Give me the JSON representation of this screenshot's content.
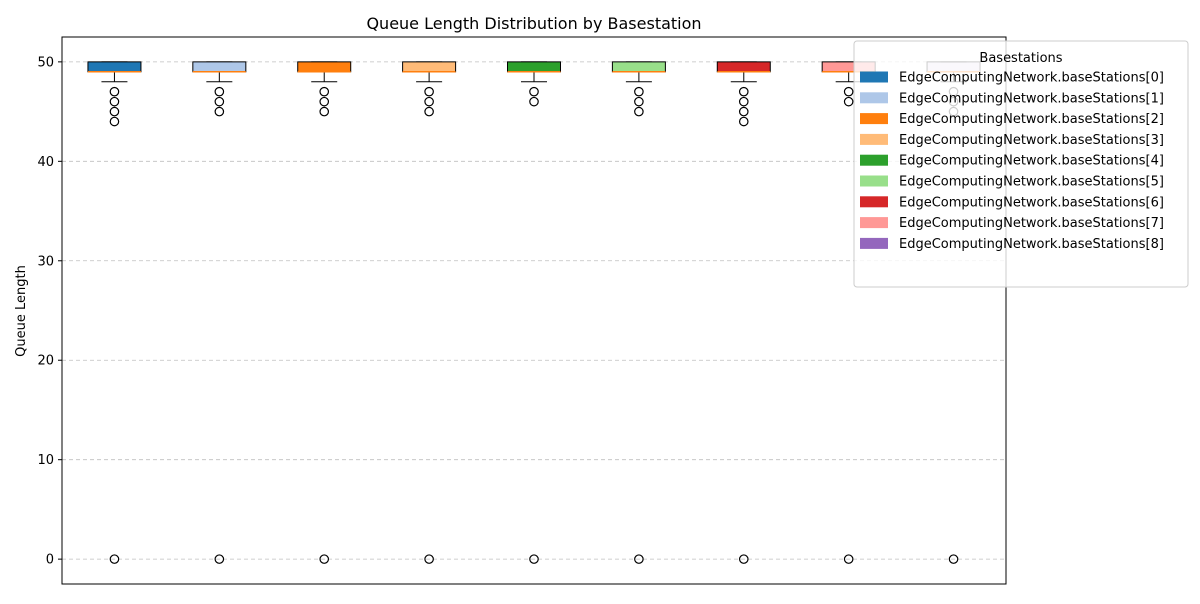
{
  "chart_data": {
    "type": "box",
    "title": "Queue Length Distribution by Basestation",
    "xlabel": "",
    "ylabel": "Queue Length",
    "ylim": [
      -2.5,
      52.5
    ],
    "yticks": [
      0,
      10,
      20,
      30,
      40,
      50
    ],
    "grid": "y",
    "legend": {
      "title": "Basestations",
      "placement": "upper-right-outside"
    },
    "series": [
      {
        "name": "EdgeComputingNetwork.baseStations[0]",
        "color": "#1f77b4",
        "whisker_low": 48,
        "q1": 49,
        "median": 49,
        "q3": 50,
        "whisker_high": 50,
        "outliers": [
          47,
          46,
          45,
          44,
          0
        ]
      },
      {
        "name": "EdgeComputingNetwork.baseStations[1]",
        "color": "#aec7e8",
        "whisker_low": 48,
        "q1": 49,
        "median": 49,
        "q3": 50,
        "whisker_high": 50,
        "outliers": [
          47,
          46,
          45,
          0
        ]
      },
      {
        "name": "EdgeComputingNetwork.baseStations[2]",
        "color": "#ff7f0e",
        "whisker_low": 48,
        "q1": 49,
        "median": 49,
        "q3": 50,
        "whisker_high": 50,
        "outliers": [
          47,
          46,
          45,
          0
        ]
      },
      {
        "name": "EdgeComputingNetwork.baseStations[3]",
        "color": "#ffbb78",
        "whisker_low": 48,
        "q1": 49,
        "median": 49,
        "q3": 50,
        "whisker_high": 50,
        "outliers": [
          47,
          46,
          45,
          0
        ]
      },
      {
        "name": "EdgeComputingNetwork.baseStations[4]",
        "color": "#2ca02c",
        "whisker_low": 48,
        "q1": 49,
        "median": 49,
        "q3": 50,
        "whisker_high": 50,
        "outliers": [
          47,
          46,
          0
        ]
      },
      {
        "name": "EdgeComputingNetwork.baseStations[5]",
        "color": "#98df8a",
        "whisker_low": 48,
        "q1": 49,
        "median": 49,
        "q3": 50,
        "whisker_high": 50,
        "outliers": [
          47,
          46,
          45,
          0
        ]
      },
      {
        "name": "EdgeComputingNetwork.baseStations[6]",
        "color": "#d62728",
        "whisker_low": 48,
        "q1": 49,
        "median": 49,
        "q3": 50,
        "whisker_high": 50,
        "outliers": [
          47,
          46,
          45,
          44,
          0
        ]
      },
      {
        "name": "EdgeComputingNetwork.baseStations[7]",
        "color": "#ff9896",
        "whisker_low": 48,
        "q1": 49,
        "median": 49,
        "q3": 50,
        "whisker_high": 50,
        "outliers": [
          47,
          46,
          0
        ]
      },
      {
        "name": "EdgeComputingNetwork.baseStations[8]",
        "color": "#9467bd",
        "whisker_low": 48,
        "q1": 49,
        "median": 49,
        "q3": 50,
        "whisker_high": 50,
        "outliers": [
          47,
          46,
          45,
          0
        ]
      }
    ]
  }
}
